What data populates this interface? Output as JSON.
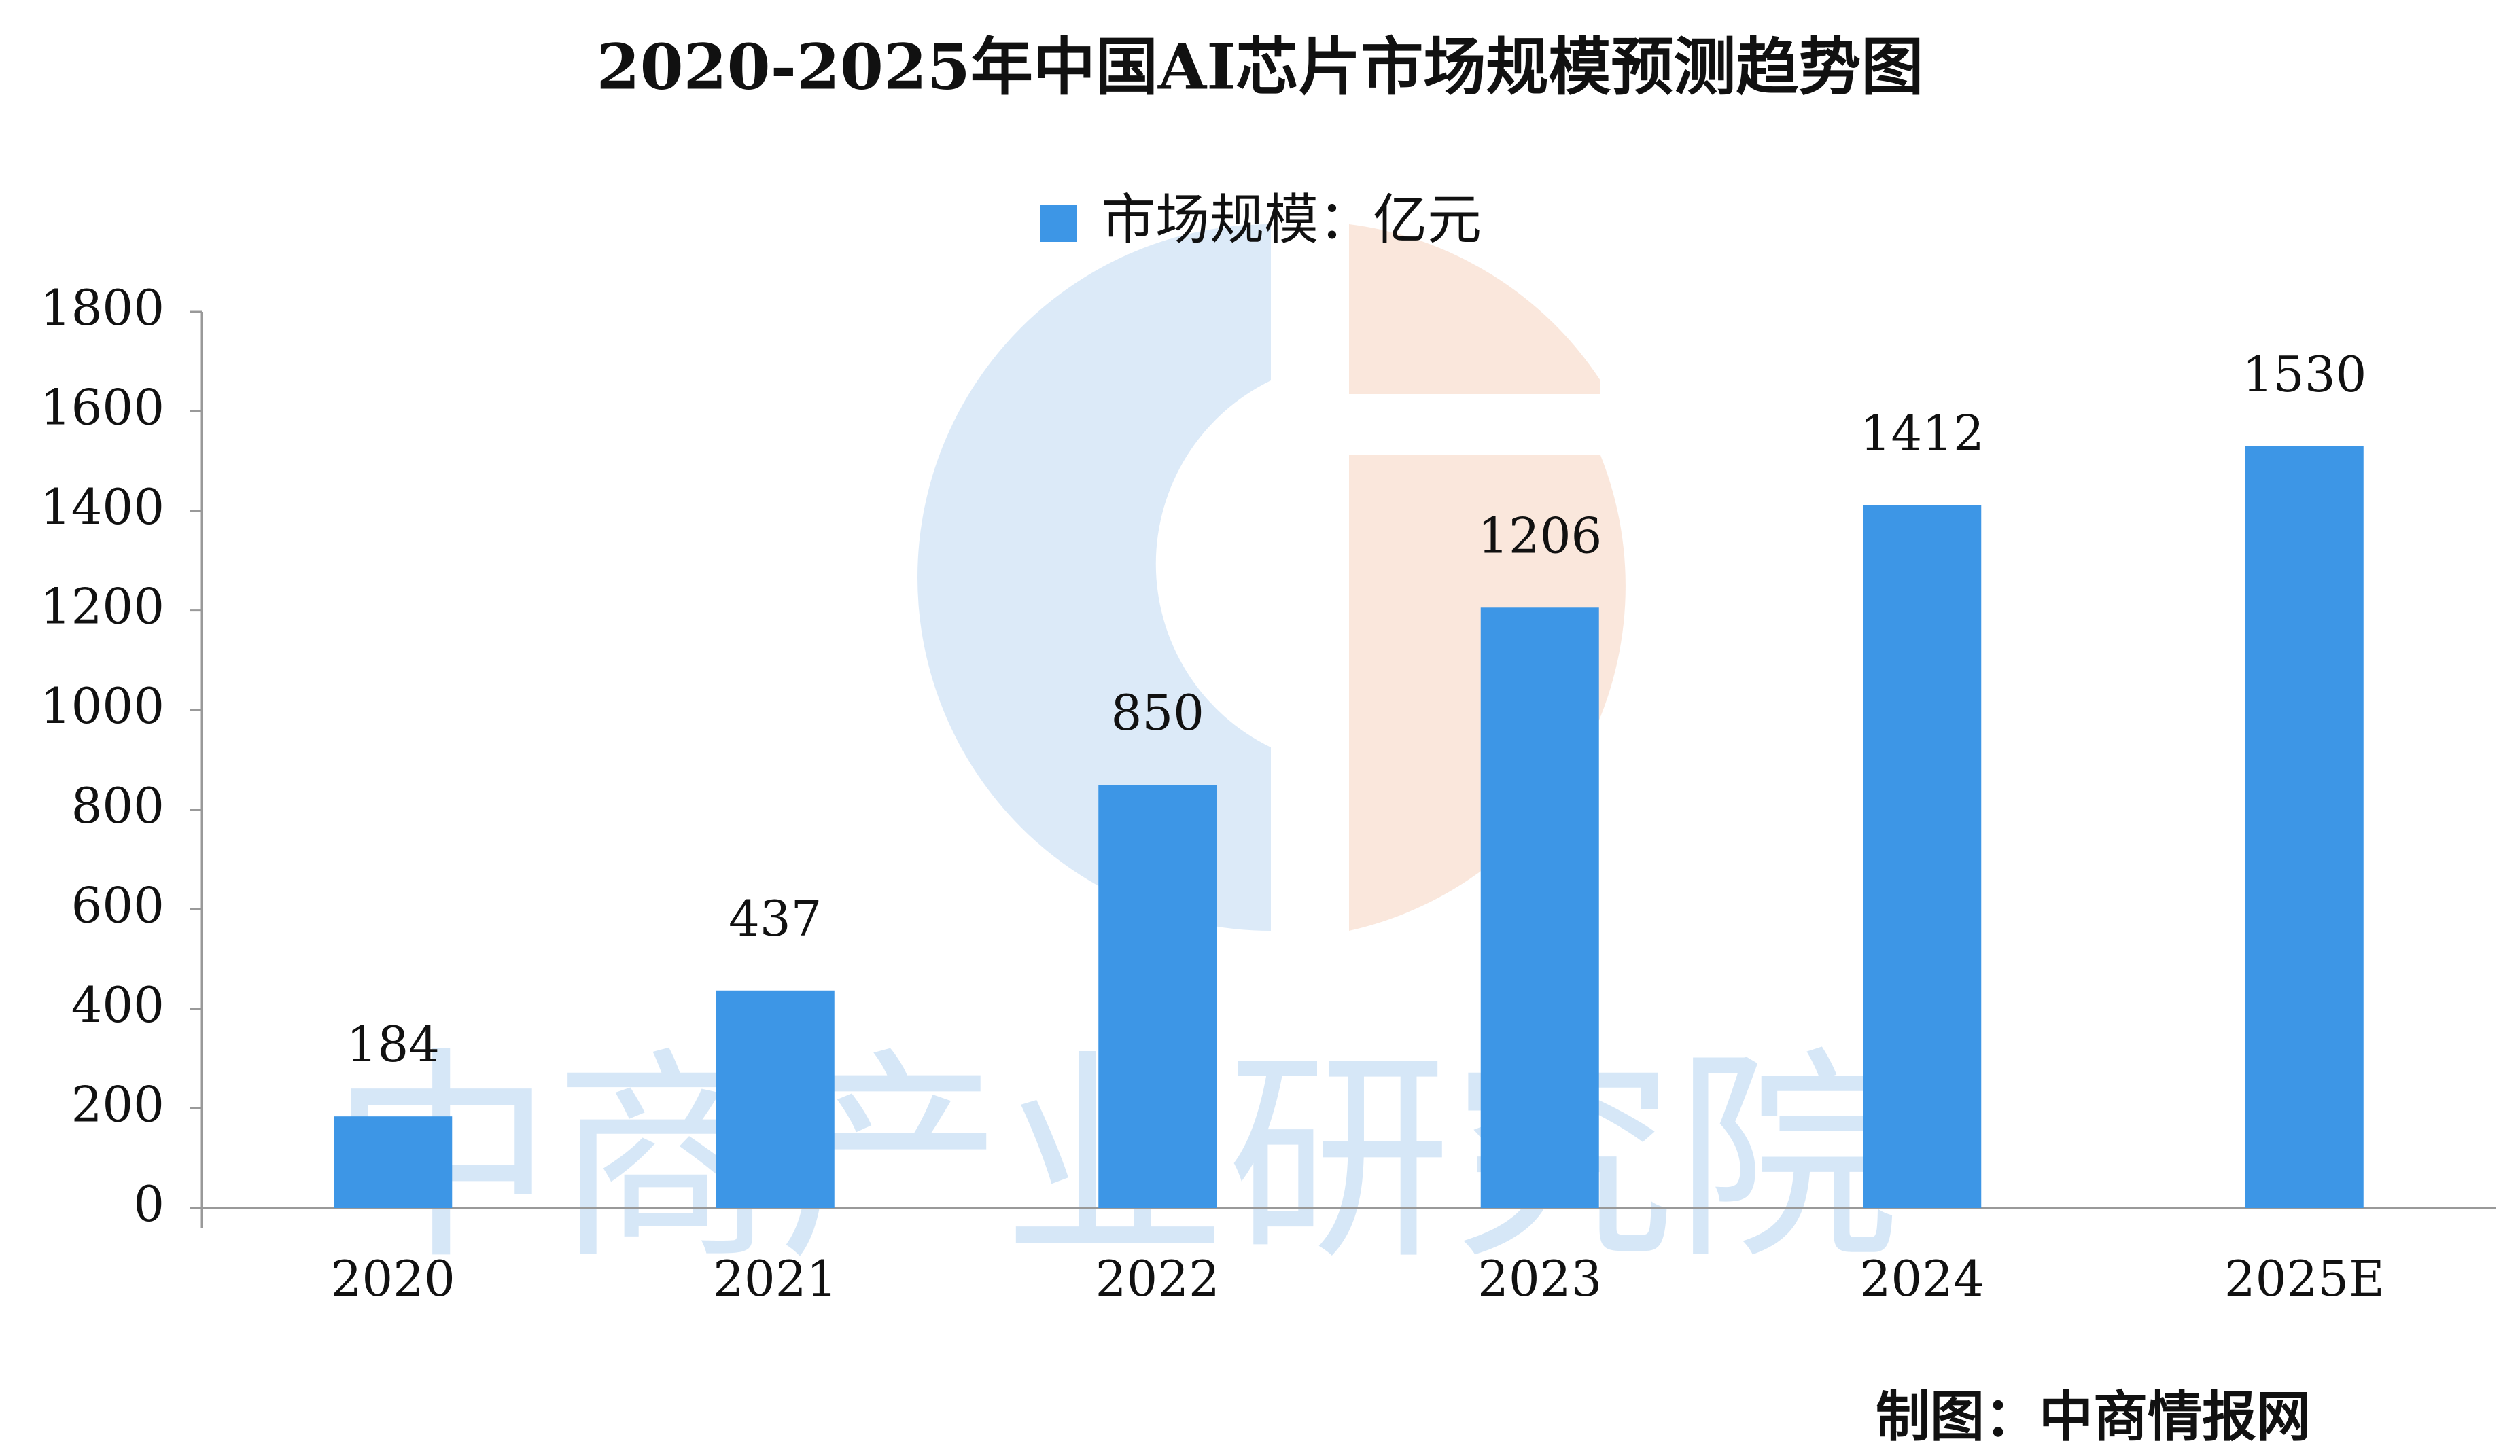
{
  "chart_data": {
    "type": "bar",
    "title": "2020-2025年中国AI芯片市场规模预测趋势图",
    "categories": [
      "2020",
      "2021",
      "2022",
      "2023",
      "2024",
      "2025E"
    ],
    "series": [
      {
        "name": "市场规模：亿元",
        "color": "#3d96e6",
        "values": [
          184,
          437,
          850,
          1206,
          1412,
          1530
        ]
      }
    ],
    "ylim": [
      0,
      1800
    ],
    "yticks": [
      0,
      200,
      400,
      600,
      800,
      1000,
      1200,
      1400,
      1600,
      1800
    ],
    "grid": false,
    "legend": "top",
    "source": "制图：中商情报网",
    "watermark": "中商产业研究院"
  }
}
